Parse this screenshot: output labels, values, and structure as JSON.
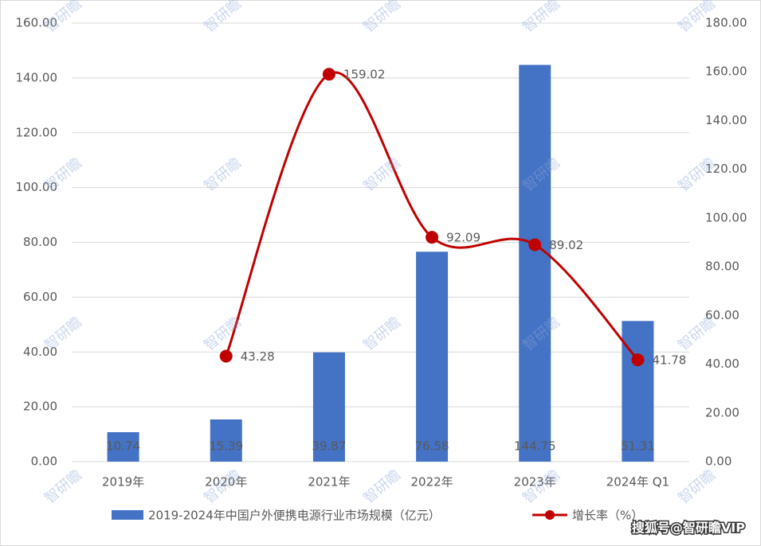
{
  "chart_data": {
    "type": "bar-line",
    "categories": [
      "2019年",
      "2020年",
      "2021年",
      "2022年",
      "2023年",
      "2024年 Q1"
    ],
    "series": [
      {
        "name": "2019-2024年中国户外便携电源行业市场规模（亿元）",
        "type": "bar",
        "color": "#4472c4",
        "values": [
          10.74,
          15.39,
          39.87,
          76.58,
          144.75,
          51.31
        ]
      },
      {
        "name": "增长率（%）",
        "type": "line",
        "axis": "y2",
        "color": "#c00000",
        "values": [
          null,
          43.28,
          159.02,
          92.09,
          89.02,
          41.78
        ]
      }
    ],
    "ylim": [
      0,
      160
    ],
    "yticks": [
      {
        "value": 0,
        "label": "0.00"
      },
      {
        "value": 20,
        "label": "20.00"
      },
      {
        "value": 40,
        "label": "40.00"
      },
      {
        "value": 60,
        "label": "60.00"
      },
      {
        "value": 80,
        "label": "80.00"
      },
      {
        "value": 100,
        "label": "100.00"
      },
      {
        "value": 120,
        "label": "120.00"
      },
      {
        "value": 140,
        "label": "140.00"
      },
      {
        "value": 160,
        "label": "160.00"
      }
    ],
    "y2lim": [
      0,
      180
    ],
    "y2ticks": [
      {
        "value": 0,
        "label": "0.00"
      },
      {
        "value": 20,
        "label": "20.00"
      },
      {
        "value": 40,
        "label": "40.00"
      },
      {
        "value": 60,
        "label": "60.00"
      },
      {
        "value": 80,
        "label": "80.00"
      },
      {
        "value": 100,
        "label": "100.00"
      },
      {
        "value": 120,
        "label": "120.00"
      },
      {
        "value": 140,
        "label": "140.00"
      },
      {
        "value": 160,
        "label": "160.00"
      },
      {
        "value": 180,
        "label": "180.00"
      }
    ],
    "grid": true,
    "watermark": "智研瞻",
    "credit": "搜狐号@智研瞻VIP"
  }
}
